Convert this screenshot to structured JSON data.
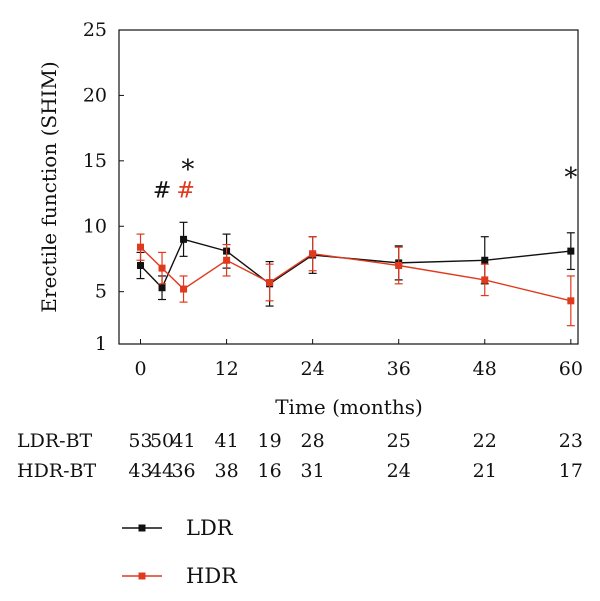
{
  "chart_data": {
    "type": "line",
    "xlabel": "Time (months)",
    "ylabel": "Erectile function (SHIM)",
    "xlim": [
      -3,
      61
    ],
    "ylim": [
      1,
      25
    ],
    "xticks": [
      "0",
      "12",
      "24",
      "36",
      "48",
      "60"
    ],
    "yticks": [
      "1",
      "5",
      "10",
      "15",
      "20",
      "25"
    ],
    "series": [
      {
        "name": "LDR",
        "color": "#111111",
        "x": [
          0,
          3,
          6,
          12,
          18,
          24,
          36,
          48,
          60
        ],
        "y": [
          7.0,
          5.3,
          9.0,
          8.1,
          5.6,
          7.8,
          7.2,
          7.4,
          8.1
        ],
        "err": [
          1.0,
          0.9,
          1.3,
          1.3,
          1.7,
          1.4,
          1.3,
          1.8,
          1.4
        ]
      },
      {
        "name": "HDR",
        "color": "#e03a1e",
        "x": [
          0,
          3,
          6,
          12,
          18,
          24,
          36,
          48,
          60
        ],
        "y": [
          8.4,
          6.8,
          5.2,
          7.4,
          5.7,
          7.9,
          7.0,
          5.9,
          4.3
        ],
        "err": [
          1.0,
          1.2,
          1.0,
          1.2,
          1.4,
          1.3,
          1.4,
          1.2,
          1.9
        ]
      }
    ],
    "annotations": [
      {
        "text": "#",
        "x": 3.0,
        "y": 12.8,
        "color": "#111111"
      },
      {
        "text": "#",
        "x": 6.3,
        "y": 12.8,
        "color": "#e03a1e"
      },
      {
        "text": "*",
        "x": 6.6,
        "y": 14.6,
        "color": "#111111"
      },
      {
        "text": "*",
        "x": 60,
        "y": 14.0,
        "color": "#111111"
      }
    ],
    "at_risk_table": {
      "columns_x": [
        0,
        3,
        6,
        12,
        18,
        24,
        36,
        48,
        60
      ],
      "rows": [
        {
          "label": "LDR-BT",
          "values": [
            "53",
            "50",
            "41",
            "41",
            "19",
            "28",
            "25",
            "22",
            "23"
          ]
        },
        {
          "label": "HDR-BT",
          "values": [
            "43",
            "44",
            "36",
            "38",
            "16",
            "31",
            "24",
            "21",
            "17"
          ]
        }
      ]
    },
    "legend": {
      "placement": "bottom-left",
      "entries": [
        {
          "label": "LDR",
          "color": "#111111"
        },
        {
          "label": "HDR",
          "color": "#e03a1e"
        }
      ]
    }
  }
}
